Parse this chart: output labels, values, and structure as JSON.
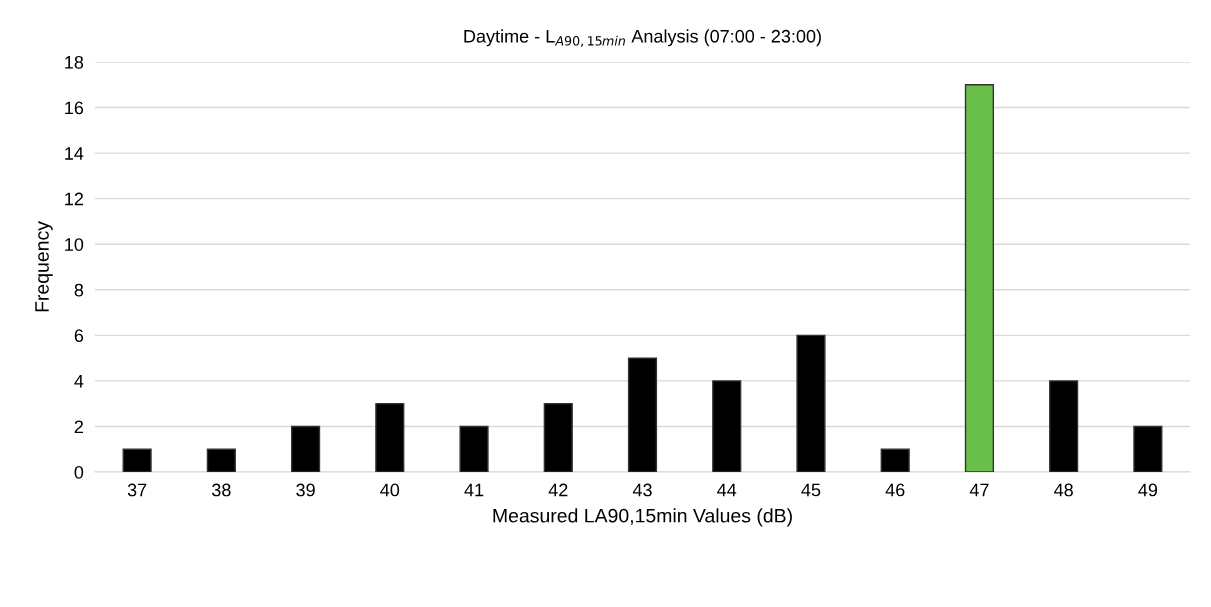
{
  "chart_data": {
    "type": "bar",
    "title": "Daytime - L$_{A90,15min}$ Analysis (07:00 - 23:00)",
    "xlabel": "Measured LA90,15min Values (dB)",
    "ylabel": "Frequency",
    "categories": [
      "37",
      "38",
      "39",
      "40",
      "41",
      "42",
      "43",
      "44",
      "45",
      "46",
      "47",
      "48",
      "49"
    ],
    "values": [
      1,
      1,
      2,
      3,
      2,
      3,
      5,
      4,
      6,
      1,
      17,
      4,
      2
    ],
    "colors": [
      "#000000",
      "#000000",
      "#000000",
      "#000000",
      "#000000",
      "#000000",
      "#000000",
      "#000000",
      "#000000",
      "#000000",
      "#6abf4b",
      "#000000",
      "#000000"
    ],
    "ylim": [
      0,
      18
    ],
    "yticks": [
      0,
      2,
      4,
      6,
      8,
      10,
      12,
      14,
      16,
      18
    ],
    "grid": "y"
  }
}
